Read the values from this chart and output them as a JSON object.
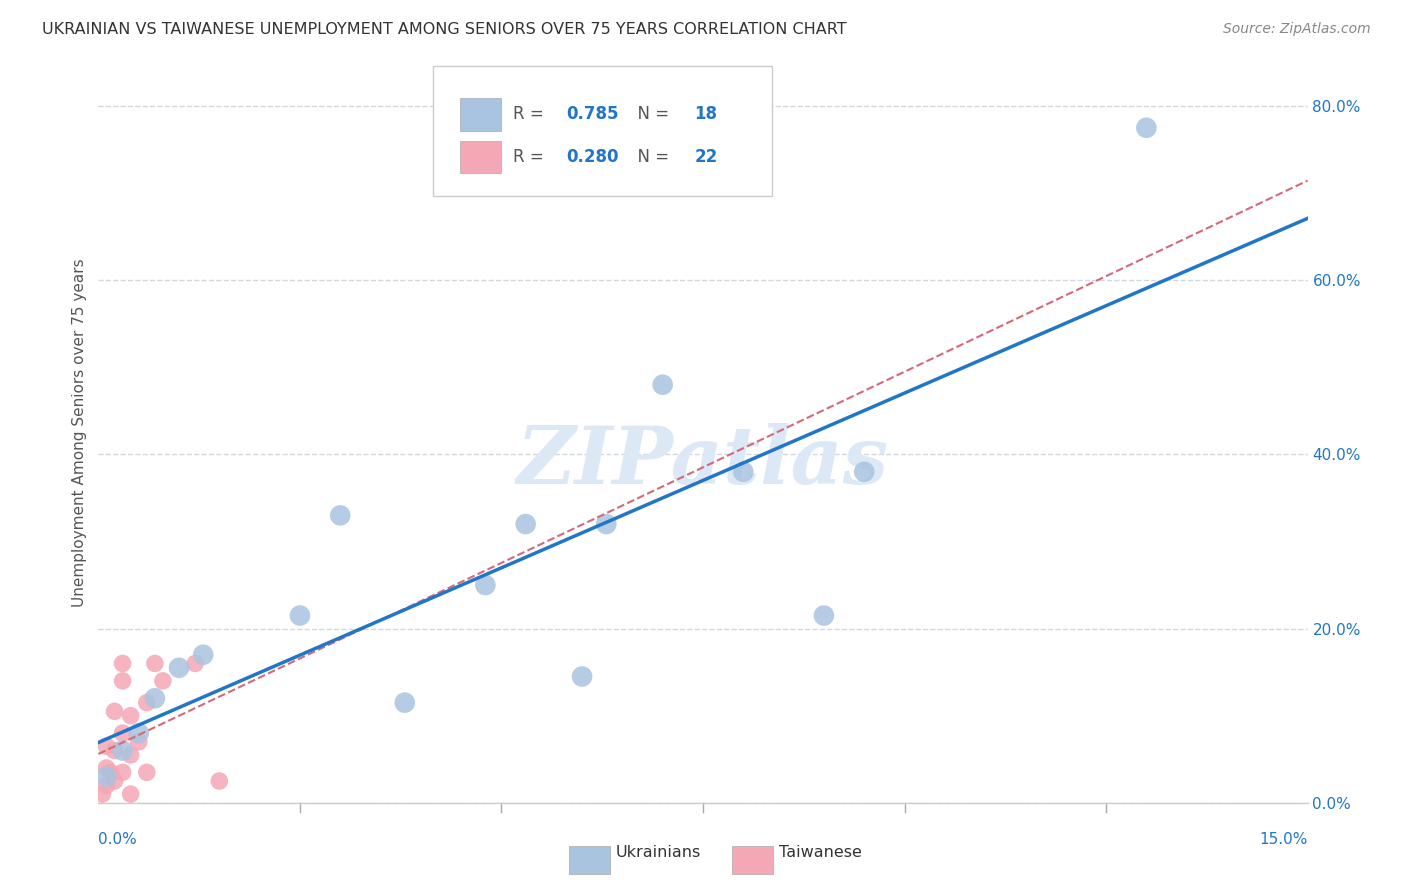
{
  "title": "UKRAINIAN VS TAIWANESE UNEMPLOYMENT AMONG SENIORS OVER 75 YEARS CORRELATION CHART",
  "source": "Source: ZipAtlas.com",
  "ylabel": "Unemployment Among Seniors over 75 years",
  "xlim": [
    0.0,
    0.15
  ],
  "ylim": [
    0.0,
    0.85
  ],
  "ytick_vals": [
    0.0,
    0.2,
    0.4,
    0.6,
    0.8
  ],
  "ytick_labels": [
    "0.0%",
    "20.0%",
    "40.0%",
    "60.0%",
    "80.0%"
  ],
  "xtick_minor": [
    0.025,
    0.05,
    0.075,
    0.1,
    0.125
  ],
  "xtick_label_left": "0.0%",
  "xtick_label_right": "15.0%",
  "ukrainian_color": "#a8c4e0",
  "taiwanese_color": "#f4a7b5",
  "ukrainian_R": 0.785,
  "ukrainian_N": 18,
  "taiwanese_R": 0.28,
  "taiwanese_N": 22,
  "regression_blue_color": "#2176c7",
  "regression_pink_color": "#d4697a",
  "watermark": "ZIPatlas",
  "watermark_color": "#dce8f5",
  "background_color": "#ffffff",
  "grid_color": "#d0d8e0",
  "tick_color": "#2176c7",
  "title_color": "#333333",
  "source_color": "#888888",
  "ylabel_color": "#555555",
  "ukr_x": [
    0.001,
    0.003,
    0.005,
    0.007,
    0.01,
    0.013,
    0.025,
    0.03,
    0.038,
    0.048,
    0.053,
    0.06,
    0.063,
    0.07,
    0.08,
    0.09,
    0.095,
    0.13
  ],
  "ukr_y": [
    0.03,
    0.06,
    0.08,
    0.12,
    0.155,
    0.17,
    0.215,
    0.33,
    0.115,
    0.25,
    0.32,
    0.145,
    0.32,
    0.48,
    0.38,
    0.215,
    0.38,
    0.775
  ],
  "tai_x": [
    0.0005,
    0.001,
    0.001,
    0.001,
    0.0015,
    0.002,
    0.002,
    0.002,
    0.003,
    0.003,
    0.003,
    0.003,
    0.004,
    0.004,
    0.004,
    0.005,
    0.006,
    0.006,
    0.007,
    0.008,
    0.012,
    0.015
  ],
  "tai_y": [
    0.01,
    0.02,
    0.04,
    0.065,
    0.035,
    0.025,
    0.06,
    0.105,
    0.035,
    0.08,
    0.14,
    0.16,
    0.01,
    0.055,
    0.1,
    0.07,
    0.035,
    0.115,
    0.16,
    0.14,
    0.16,
    0.025
  ]
}
